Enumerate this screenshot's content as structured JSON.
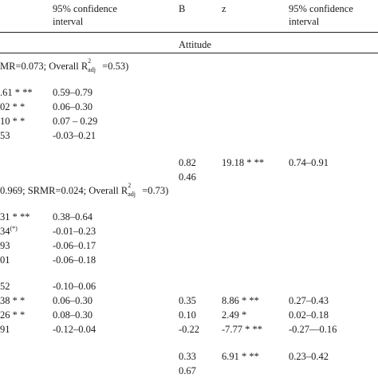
{
  "header": {
    "col2_title_line1": "95% confidence",
    "col2_title_line2": "interval",
    "col3_title": "B",
    "col4_title": "z",
    "col5_title_line1": "95% confidence",
    "col5_title_line2": "interval",
    "subheader_attitude": "Attitude"
  },
  "model1": {
    "fit_prefix": "MR=0.073; Overall R",
    "fit_sup": "2",
    "fit_sub": "adj",
    "fit_suffix": "=0.53)"
  },
  "model2": {
    "fit_prefix": "0.969; SRMR=0.024; Overall R",
    "fit_sup": "2",
    "fit_sub": "adj",
    "fit_suffix": "=0.73)"
  },
  "rows": [
    {
      "a": ".61 * **",
      "ci": "0.59–0.79"
    },
    {
      "a": "02 * *",
      "ci": "0.06–0.30"
    },
    {
      "a": "10 * *",
      "ci": "0.07 – 0.29"
    },
    {
      "a": "53",
      "ci": "-0.03–0.21"
    },
    {
      "b": "0.82",
      "z": "19.18 * **",
      "ci2": "0.74–0.91"
    },
    {
      "b": "0.46"
    },
    {
      "a": "31 * **",
      "ci": "0.38–0.64"
    },
    {
      "a": "34",
      "a_note": "(*)",
      "ci": "-0.01–0.23"
    },
    {
      "a": "93",
      "ci": "-0.06–0.17"
    },
    {
      "a": "01",
      "ci": "-0.06–0.18"
    },
    {
      "a": "52",
      "ci": "-0.10–0.06"
    },
    {
      "a": "38 * *",
      "ci": "0.06–0.30",
      "b": "0.35",
      "z": "8.86 * **",
      "ci2": "0.27–0.43"
    },
    {
      "a": "26 * *",
      "ci": "0.08–0.30",
      "b": "0.10",
      "z": "2.49 *",
      "ci2": "0.02–0.18"
    },
    {
      "a": "91",
      "ci": "-0.12–0.04",
      "b": "-0.22",
      "z": "-7.77 * **",
      "ci2": "-0.27—0.16"
    },
    {
      "b": "0.33",
      "z": "6.91 * **",
      "ci2": "0.23–0.42"
    },
    {
      "b": "0.67"
    }
  ]
}
